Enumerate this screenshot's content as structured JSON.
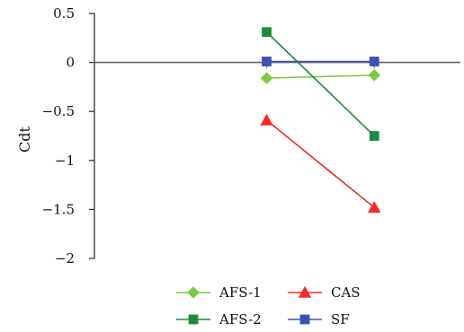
{
  "chart_data": {
    "type": "line",
    "ylabel": "Cdt",
    "ylim": [
      -2,
      0.5
    ],
    "yticks": [
      0.5,
      0,
      -0.5,
      -1,
      -1.5,
      -2
    ],
    "ytick_labels": [
      "0.5",
      "0",
      "−0.5",
      "−1",
      "−1.5",
      "−2"
    ],
    "x": [
      1,
      2
    ],
    "xlim": [
      -0.6,
      2.8
    ],
    "grid": false,
    "legend_position": "bottom",
    "series": [
      {
        "name": "AFS-1",
        "values": [
          -0.16,
          -0.13
        ],
        "color": "#7dc942",
        "marker": "diamond"
      },
      {
        "name": "CAS",
        "values": [
          -0.59,
          -1.48
        ],
        "color": "#f22b2b",
        "marker": "triangle"
      },
      {
        "name": "AFS-2",
        "values": [
          0.31,
          -0.75
        ],
        "color": "#1f8a3c",
        "marker": "square"
      },
      {
        "name": "SF",
        "values": [
          0.01,
          0.01
        ],
        "color": "#3f51b5",
        "marker": "square"
      }
    ]
  }
}
